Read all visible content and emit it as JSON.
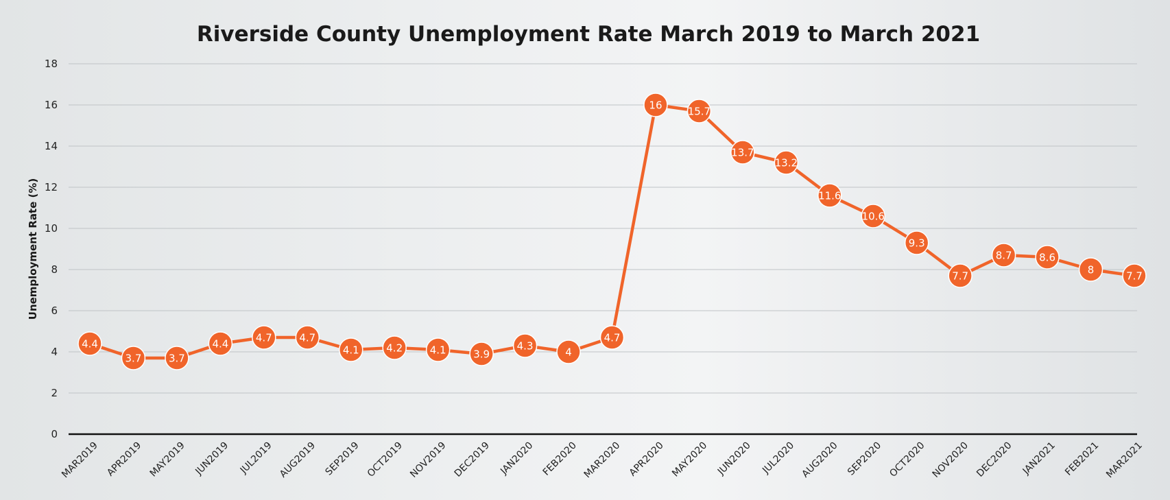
{
  "chart_data": {
    "type": "line",
    "title": "Riverside County Unemployment Rate March 2019 to March 2021",
    "xlabel": "",
    "ylabel": "Unemployment Rate (%)",
    "ylim": [
      0,
      18
    ],
    "yticks": [
      0,
      2,
      4,
      6,
      8,
      10,
      12,
      14,
      16,
      18
    ],
    "grid": true,
    "legend": "none",
    "line_color": "#f0642a",
    "categories": [
      "MAR2019",
      "APR2019",
      "MAY2019",
      "JUN2019",
      "JUL2019",
      "AUG2019",
      "SEP2019",
      "OCT2019",
      "NOV2019",
      "DEC2019",
      "JAN2020",
      "FEB2020",
      "MAR2020",
      "APR2020",
      "MAY2020",
      "JUN2020",
      "JUL2020",
      "AUG2020",
      "SEP2020",
      "OCT2020",
      "NOV2020",
      "DEC2020",
      "JAN2021",
      "FEB2021",
      "MAR2021"
    ],
    "values": [
      4.4,
      3.7,
      3.7,
      4.4,
      4.7,
      4.7,
      4.1,
      4.2,
      4.1,
      3.9,
      4.3,
      4,
      4.7,
      16,
      15.7,
      13.7,
      13.2,
      11.6,
      10.6,
      9.3,
      7.7,
      8.7,
      8.6,
      8,
      7.7
    ]
  }
}
